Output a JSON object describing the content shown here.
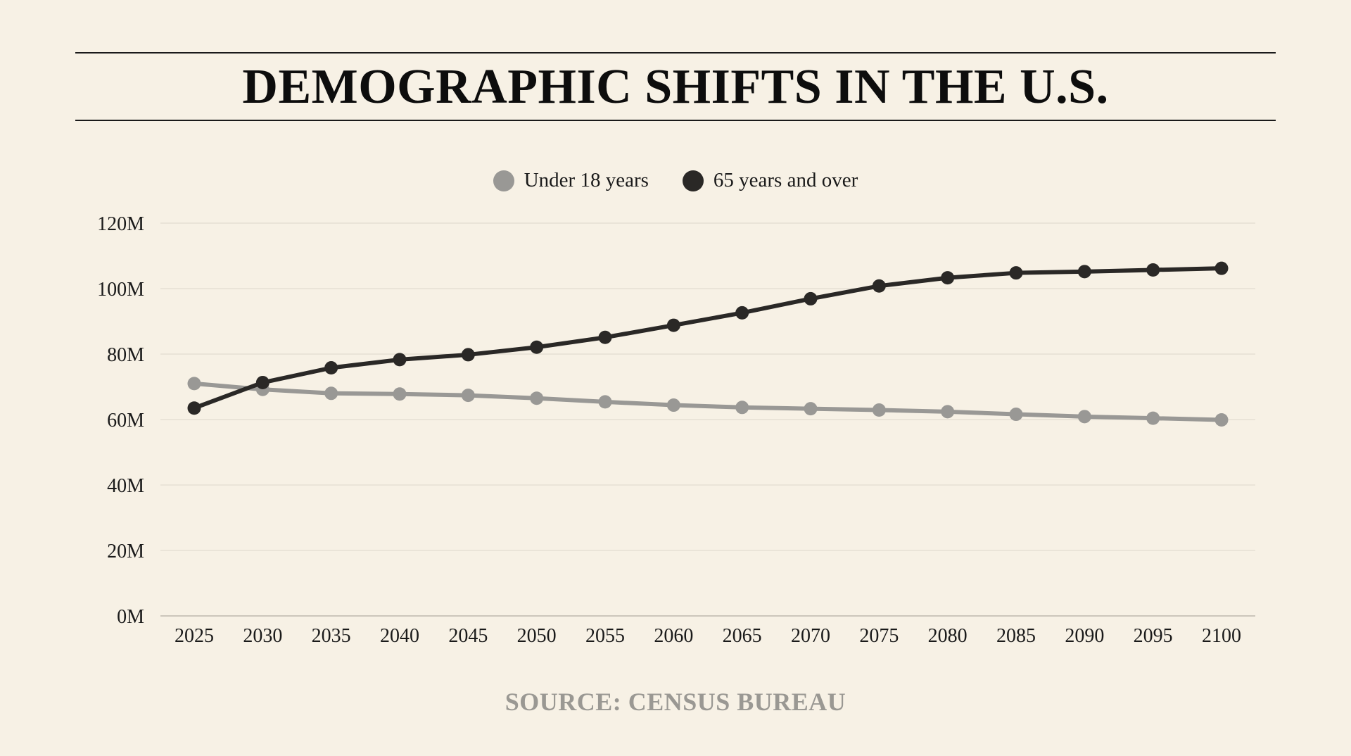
{
  "chart_data": {
    "type": "line",
    "title": "DEMOGRAPHIC SHIFTS IN THE U.S.",
    "source": "SOURCE: CENSUS BUREAU",
    "xlabel": "",
    "ylabel": "",
    "categories": [
      "2025",
      "2030",
      "2035",
      "2040",
      "2045",
      "2050",
      "2055",
      "2060",
      "2065",
      "2070",
      "2075",
      "2080",
      "2085",
      "2090",
      "2095",
      "2100"
    ],
    "yticks": [
      "0M",
      "20M",
      "40M",
      "60M",
      "80M",
      "100M",
      "120M"
    ],
    "ylim": [
      0,
      120
    ],
    "grid": true,
    "legend_position": "top-center",
    "series": [
      {
        "name": "Under 18 years",
        "color": "#999895",
        "values": [
          71.0,
          69.2,
          68.0,
          67.8,
          67.4,
          66.5,
          65.4,
          64.4,
          63.7,
          63.3,
          62.9,
          62.4,
          61.6,
          60.9,
          60.4,
          59.9
        ]
      },
      {
        "name": "65 years and over",
        "color": "#2a2826",
        "values": [
          63.5,
          71.3,
          75.8,
          78.3,
          79.8,
          82.1,
          85.1,
          88.8,
          92.6,
          96.9,
          100.8,
          103.3,
          104.8,
          105.2,
          105.7,
          106.2
        ]
      }
    ]
  }
}
